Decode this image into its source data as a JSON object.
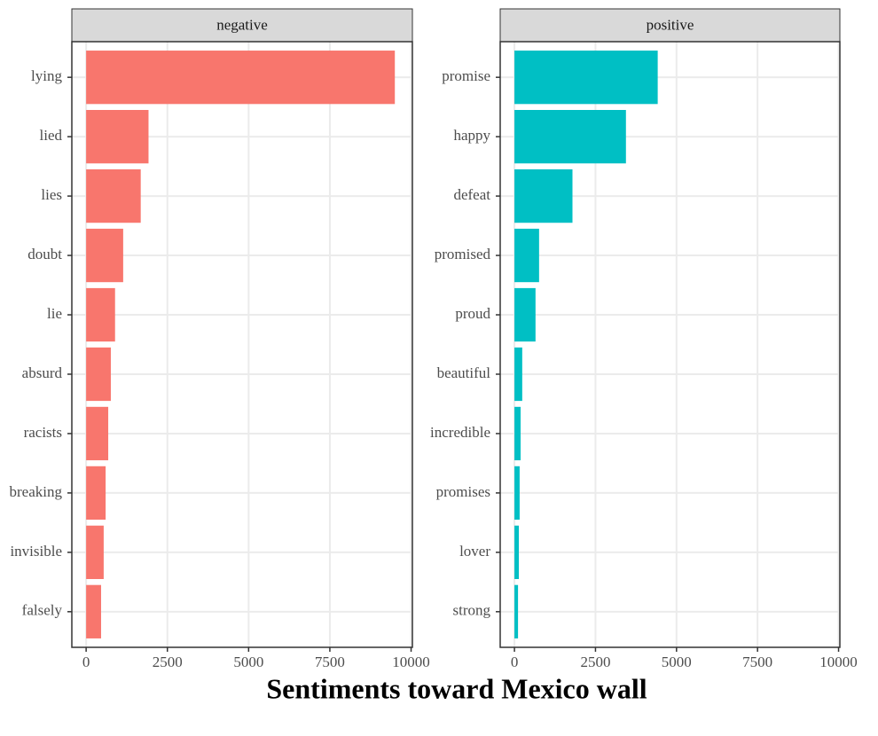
{
  "title": "Sentiments toward Mexico wall",
  "chart_data": [
    {
      "type": "bar",
      "title": "negative",
      "categories": [
        "lying",
        "lied",
        "lies",
        "doubt",
        "lie",
        "absurd",
        "racists",
        "breaking",
        "invisible",
        "falsely"
      ],
      "values": [
        9500,
        1920,
        1680,
        1140,
        890,
        760,
        680,
        600,
        540,
        460
      ],
      "color": "#F8766D",
      "xlim": [
        -440,
        10040
      ],
      "xticks": [
        0,
        2500,
        5000,
        7500,
        10000
      ],
      "grid": true
    },
    {
      "type": "bar",
      "title": "positive",
      "categories": [
        "promise",
        "happy",
        "defeat",
        "promised",
        "proud",
        "beautiful",
        "incredible",
        "promises",
        "lover",
        "strong"
      ],
      "values": [
        4420,
        3440,
        1790,
        760,
        650,
        240,
        190,
        160,
        135,
        110
      ],
      "color": "#00BFC4",
      "xlim": [
        -440,
        10040
      ],
      "xticks": [
        0,
        2500,
        5000,
        7500,
        10000
      ],
      "grid": true
    }
  ]
}
